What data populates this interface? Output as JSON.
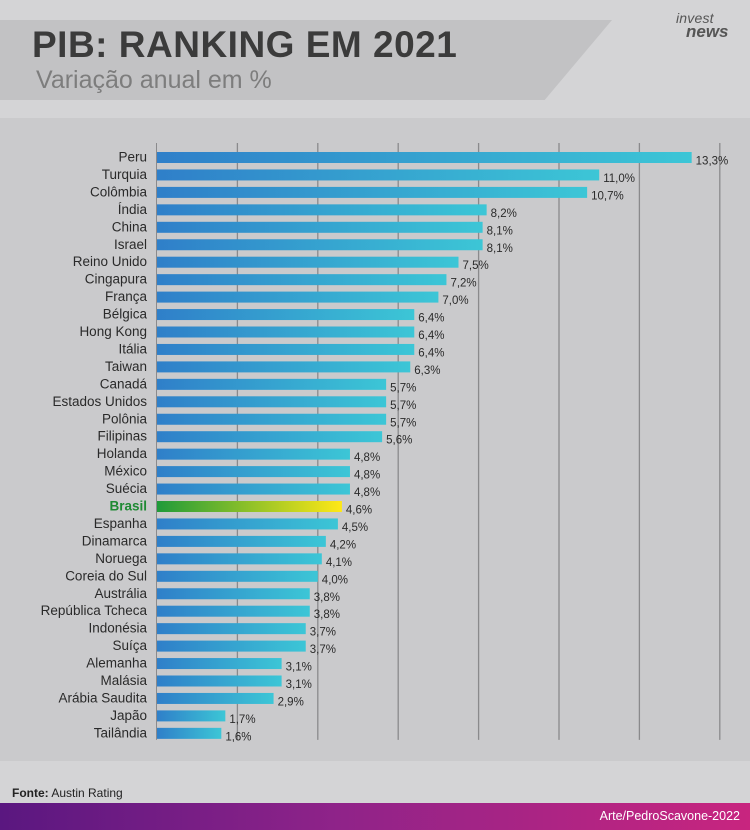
{
  "header": {
    "title": "PIB: RANKING EM 2021",
    "subtitle": "Variação anual em %",
    "logo_line1": "invest",
    "logo_line2": "news"
  },
  "chart_data": {
    "type": "bar",
    "orientation": "horizontal",
    "title": "PIB: RANKING EM 2021",
    "subtitle": "Variação anual em %",
    "categories": [
      "Peru",
      "Turquia",
      "Colômbia",
      "Índia",
      "China",
      "Israel",
      "Reino Unido",
      "Cingapura",
      "França",
      "Bélgica",
      "Hong Kong",
      "Itália",
      "Taiwan",
      "Canadá",
      "Estados Unidos",
      "Polônia",
      "Filipinas",
      "Holanda",
      "México",
      "Suécia",
      "Brasil",
      "Espanha",
      "Dinamarca",
      "Noruega",
      "Coreia do Sul",
      "Austrália",
      "República Tcheca",
      "Indonésia",
      "Suíça",
      "Alemanha",
      "Malásia",
      "Arábia Saudita",
      "Japão",
      "Tailândia"
    ],
    "values": [
      13.3,
      11.0,
      10.7,
      8.2,
      8.1,
      8.1,
      7.5,
      7.2,
      7.0,
      6.4,
      6.4,
      6.4,
      6.3,
      5.7,
      5.7,
      5.7,
      5.6,
      4.8,
      4.8,
      4.8,
      4.6,
      4.5,
      4.2,
      4.1,
      4.0,
      3.8,
      3.8,
      3.7,
      3.7,
      3.1,
      3.1,
      2.9,
      1.7,
      1.6
    ],
    "value_labels": [
      "13,3%",
      "11,0%",
      "10,7%",
      "8,2%",
      "8,1%",
      "8,1%",
      "7,5%",
      "7,2%",
      "7,0%",
      "6,4%",
      "6,4%",
      "6,4%",
      "6,3%",
      "5,7%",
      "5,7%",
      "5,7%",
      "5,6%",
      "4,8%",
      "4,8%",
      "4,8%",
      "4,6%",
      "4,5%",
      "4,2%",
      "4,1%",
      "4,0%",
      "3,8%",
      "3,8%",
      "3,7%",
      "3,7%",
      "3,1%",
      "3,1%",
      "2,9%",
      "1,7%",
      "1,6%"
    ],
    "highlight": "Brasil",
    "xlim": [
      0,
      14
    ],
    "grid": true,
    "gridline_interval": 2,
    "colors": {
      "bar_start": "#2f7fc9",
      "bar_end": "#3cc6d6",
      "highlight_start": "#1f9a3a",
      "highlight_end": "#ffe817",
      "highlight_label": "#1f8a33",
      "grid": "#8a8a8c"
    }
  },
  "footer": {
    "source_label": "Fonte:",
    "source_value": "Austin Rating",
    "credit": "Arte/PedroScavone-2022"
  }
}
